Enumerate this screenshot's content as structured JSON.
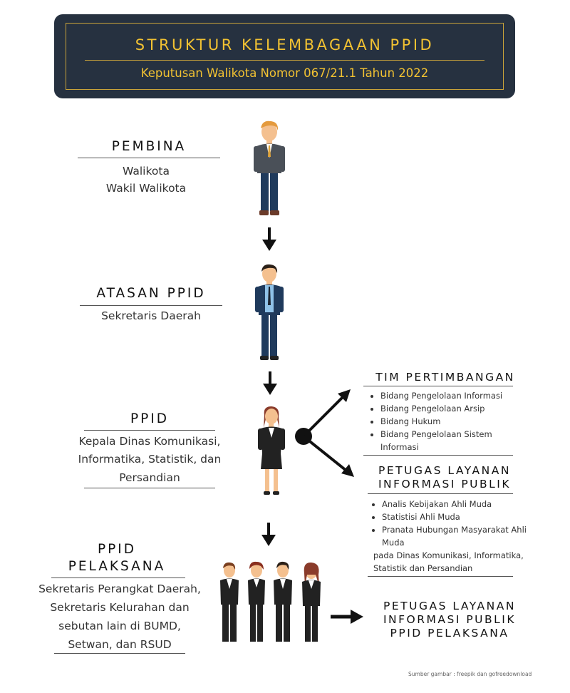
{
  "header": {
    "title": "STRUKTUR KELEMBAGAAN PPID",
    "subtitle": "Keputusan Walikota Nomor 067/21.1 Tahun 2022"
  },
  "pembina": {
    "title": "PEMBINA",
    "lines": [
      "Walikota",
      "Wakil Walikota"
    ]
  },
  "atasan": {
    "title": "ATASAN PPID",
    "lines": [
      "Sekretaris Daerah"
    ]
  },
  "ppid": {
    "title": "PPID",
    "lines": [
      "Kepala Dinas Komunikasi,",
      "Informatika, Statistik, dan",
      "Persandian"
    ]
  },
  "pelaksana": {
    "title_lines": [
      "PPID",
      "PELAKSANA"
    ],
    "lines": [
      "Sekretaris Perangkat Daerah,",
      "Sekretaris Kelurahan dan",
      "sebutan lain di BUMD,",
      "Setwan, dan RSUD"
    ]
  },
  "tim": {
    "title": "TIM PERTIMBANGAN",
    "items": [
      "Bidang Pengelolaan Informasi",
      "Bidang Pengelolaan Arsip",
      "Bidang Hukum",
      "Bidang Pengelolaan Sistem Informasi"
    ]
  },
  "petugas": {
    "title_lines": [
      "PETUGAS LAYANAN",
      "INFORMASI PUBLIK"
    ],
    "items": [
      "Analis Kebijakan Ahli Muda",
      "Statistisi Ahli Muda",
      "Pranata Hubungan Masyarakat Ahli Muda"
    ],
    "note": "pada Dinas Komunikasi, Informatika, Statistik dan Persandian"
  },
  "petugas_pelaksana": {
    "title_lines": [
      "PETUGAS LAYANAN",
      "INFORMASI PUBLIK",
      "PPID PELAKSANA"
    ]
  },
  "source": "Sumber gambar : freepik dan gofreedownload",
  "colors": {
    "banner_bg": "#263140",
    "gold": "#f2c232"
  },
  "icons": [
    "man-in-suit-icon",
    "businessman-blue-icon",
    "businesswoman-icon",
    "team-of-four-icon",
    "arrow-down-icon",
    "arrow-right-icon",
    "branch-node-icon"
  ]
}
